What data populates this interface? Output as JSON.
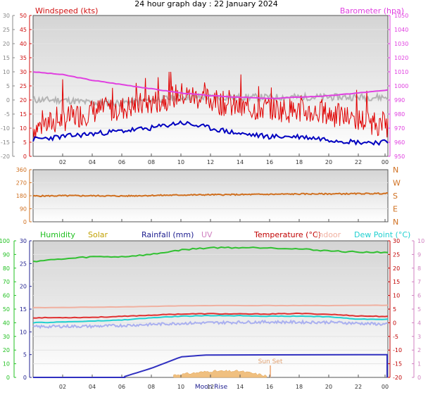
{
  "title": "24 hour graph day : 22 January 2024",
  "x_ticks": [
    "02",
    "04",
    "06",
    "08",
    "10",
    "12",
    "14",
    "16",
    "18",
    "20",
    "22",
    "00"
  ],
  "colors": {
    "windspeed": "#e00000",
    "gust_grey": "#b4b4b4",
    "wind_avg": "#0000c0",
    "barometer": "#e040e0",
    "direction": "#d07020",
    "humidity": "#20c020",
    "solar": "#c0a000",
    "rainfall": "#2020a0",
    "uv": "#d080c0",
    "temperature": "#c00000",
    "indoor": "#f0b0a0",
    "dewpoint": "#20d0d0",
    "axis_temp": "#e04080"
  },
  "chart_data": [
    {
      "type": "line",
      "panel": "wind and barometer",
      "left_axis": {
        "label": "Windspeed (kts)",
        "ticks": [
          "50",
          "45",
          "40",
          "35",
          "30",
          "25",
          "20",
          "15",
          "10",
          "5",
          "0"
        ],
        "ylim": [
          0,
          50
        ]
      },
      "left_axis_outer": {
        "ticks": [
          "30",
          "25",
          "20",
          "15",
          "10",
          "5",
          "0",
          "-5",
          "-10",
          "-15",
          "-20"
        ]
      },
      "right_axis": {
        "label": "Barometer (hpa)",
        "ticks": [
          "1050",
          "1040",
          "1030",
          "1020",
          "1010",
          "1000",
          "990",
          "980",
          "970",
          "960",
          "950"
        ],
        "ylim": [
          950,
          1050
        ]
      },
      "x": [
        0,
        2,
        4,
        6,
        8,
        10,
        12,
        14,
        16,
        18,
        20,
        22,
        24
      ],
      "series": [
        {
          "key": "barometer",
          "axis": "right",
          "values": [
            1010,
            1008,
            1004,
            1001,
            998,
            995,
            993,
            992,
            991,
            992,
            993,
            995,
            997
          ]
        },
        {
          "key": "windspeed",
          "axis": "left",
          "values": [
            10,
            13,
            16,
            17,
            19,
            22,
            20,
            17,
            17,
            16,
            15,
            13,
            11
          ]
        },
        {
          "key": "gust_grey",
          "axis": "left",
          "values": [
            20,
            20,
            19,
            19,
            20,
            21,
            21,
            21,
            21,
            21,
            21,
            21,
            21
          ]
        },
        {
          "key": "wind_avg",
          "axis": "left",
          "values": [
            6,
            7,
            8,
            9,
            10,
            12,
            10,
            8,
            7,
            7,
            6,
            5,
            5
          ]
        }
      ]
    },
    {
      "type": "line",
      "panel": "wind direction",
      "left_axis": {
        "ticks": [
          "360",
          "270",
          "180",
          "90",
          "0"
        ],
        "ylim": [
          0,
          360
        ]
      },
      "right_axis": {
        "ticks": [
          "N",
          "W",
          "S",
          "E",
          "N"
        ]
      },
      "x": [
        0,
        2,
        4,
        6,
        8,
        10,
        12,
        14,
        16,
        18,
        20,
        22,
        24
      ],
      "series": [
        {
          "key": "direction",
          "values": [
            178,
            180,
            180,
            178,
            182,
            185,
            187,
            188,
            190,
            192,
            193,
            194,
            196
          ]
        }
      ]
    },
    {
      "type": "line",
      "panel": "humidity, solar, rainfall, uv, temperature, indoor, dew point",
      "legend": [
        "Humidity",
        "Solar",
        "Rainfall (mm)",
        "UV",
        "Temperature (°C)",
        "Indoor",
        "Dew Point (°C)"
      ],
      "axis_outer_left": {
        "ticks": [
          "100",
          "90",
          "80",
          "70",
          "60",
          "50",
          "40",
          "30",
          "20",
          "10",
          "0"
        ],
        "ylim": [
          0,
          100
        ]
      },
      "axis_inner_left": {
        "ticks": [
          "30",
          "25",
          "20",
          "15",
          "10",
          "5",
          "0"
        ],
        "ylim": [
          0,
          30
        ]
      },
      "axis_inner_right": {
        "ticks": [
          "30",
          "25",
          "20",
          "15",
          "10",
          "5",
          "0",
          "-5",
          "-10",
          "-15",
          "-20"
        ],
        "ylim": [
          -20,
          30
        ]
      },
      "axis_outer_right": {
        "ticks": [
          "10",
          "9",
          "8",
          "7",
          "6",
          "5",
          "4",
          "3",
          "2",
          "1",
          "0"
        ],
        "ylim": [
          0,
          10
        ]
      },
      "annotations": [
        "Sun Set",
        "Moon Rise"
      ],
      "x": [
        0,
        2,
        4,
        6,
        8,
        10,
        12,
        14,
        16,
        18,
        20,
        22,
        24
      ],
      "series": [
        {
          "key": "humidity",
          "axis": "inner_left",
          "values": [
            25.5,
            26,
            26.5,
            26.5,
            27,
            28,
            28.5,
            28.5,
            28.5,
            28.2,
            27.8,
            27.5,
            27.5
          ]
        },
        {
          "key": "indoor",
          "axis": "inner_right",
          "values": [
            5.5,
            5.6,
            5.7,
            5.8,
            6,
            6.2,
            6.3,
            6.3,
            6.3,
            6.3,
            6.3,
            6.4,
            6.4
          ]
        },
        {
          "key": "temperature",
          "axis": "inner_right",
          "values": [
            1.8,
            1.9,
            2,
            2.3,
            2.8,
            3.2,
            3.3,
            3.2,
            3.2,
            3.4,
            3.1,
            2.5,
            2.3
          ]
        },
        {
          "key": "dewpoint",
          "axis": "inner_right",
          "values": [
            0,
            0.3,
            0.6,
            1,
            1.8,
            2.4,
            2.6,
            2.6,
            2.4,
            2.4,
            2.2,
            1.3,
            1.3
          ]
        },
        {
          "key": "uv",
          "axis": "inner_right",
          "values": [
            -1.5,
            -1.3,
            -1.3,
            -1,
            -0.6,
            -0.2,
            0,
            0.2,
            0.3,
            0.2,
            0.2,
            -0.2,
            -0.6
          ]
        },
        {
          "key": "rainfall",
          "axis": "inner_left",
          "values": [
            0,
            0,
            0,
            0,
            2,
            4.5,
            5,
            5,
            5,
            5,
            5,
            5,
            5
          ]
        },
        {
          "key": "solar",
          "axis": "inner_left",
          "values": [
            0,
            0,
            0,
            0,
            0,
            0.3,
            0.8,
            0.8,
            0,
            0,
            0,
            0,
            0
          ]
        }
      ]
    }
  ]
}
